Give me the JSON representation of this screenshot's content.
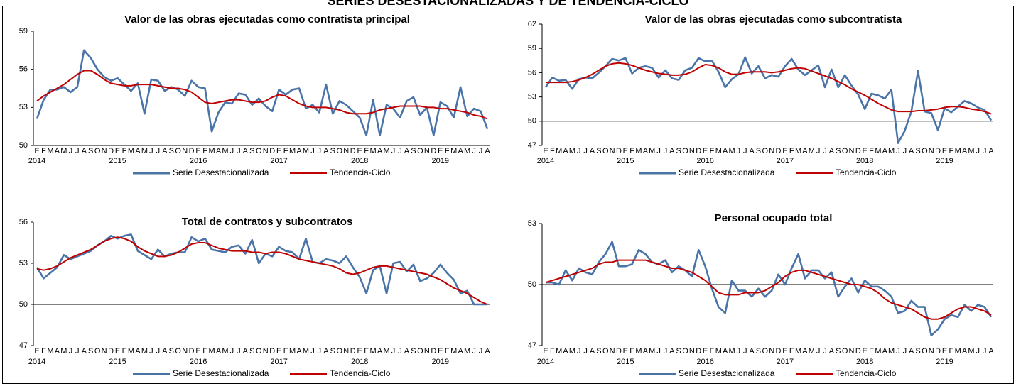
{
  "title": "SERIES DESESTACIONALIZADAS Y DE TENDENCIA-CICLO",
  "chart_data": [
    {
      "type": "line",
      "title": "Valor de las obras ejecutadas como contratista principal",
      "categories": [
        "E",
        "F",
        "M",
        "A",
        "M",
        "J",
        "J",
        "A",
        "S",
        "O",
        "N",
        "D",
        "E",
        "F",
        "M",
        "A",
        "M",
        "J",
        "J",
        "A",
        "S",
        "O",
        "N",
        "D",
        "E",
        "F",
        "M",
        "A",
        "M",
        "J",
        "J",
        "A",
        "S",
        "O",
        "N",
        "D",
        "E",
        "F",
        "M",
        "A",
        "M",
        "J",
        "J",
        "A",
        "S",
        "O",
        "N",
        "D",
        "E",
        "F",
        "M",
        "A",
        "M",
        "J",
        "J",
        "A",
        "S",
        "O",
        "N",
        "D",
        "E",
        "F",
        "M",
        "A",
        "M",
        "J",
        "J",
        "A"
      ],
      "years": [
        "2014",
        "2015",
        "2016",
        "2017",
        "2018",
        "2019"
      ],
      "ylim": [
        50,
        59
      ],
      "yticks": [
        50,
        53,
        56,
        59
      ],
      "hline": 50,
      "series": [
        {
          "name": "Serie Desestacionalizada",
          "color": "#4a74a8",
          "values": [
            52.1,
            53.6,
            54.4,
            54.4,
            54.6,
            54.2,
            54.6,
            57.5,
            56.9,
            56.0,
            55.4,
            55.1,
            55.3,
            54.8,
            54.3,
            54.9,
            52.5,
            55.2,
            55.1,
            54.3,
            54.6,
            54.4,
            53.9,
            55.1,
            54.6,
            54.5,
            51.1,
            52.6,
            53.4,
            53.3,
            54.1,
            54.0,
            53.2,
            53.7,
            53.1,
            52.7,
            54.4,
            54.0,
            54.4,
            54.5,
            52.9,
            53.2,
            52.6,
            54.8,
            52.5,
            53.5,
            53.2,
            52.7,
            52.2,
            50.8,
            53.6,
            50.8,
            53.2,
            52.9,
            52.2,
            53.5,
            53.8,
            52.4,
            53.0,
            50.8,
            53.4,
            53.1,
            52.2,
            54.6,
            52.3,
            52.9,
            52.7,
            51.3
          ]
        },
        {
          "name": "Tendencia-Ciclo",
          "color": "#c00000",
          "values": [
            53.5,
            53.9,
            54.2,
            54.5,
            54.8,
            55.2,
            55.6,
            55.9,
            55.9,
            55.6,
            55.2,
            54.9,
            54.8,
            54.7,
            54.7,
            54.8,
            54.8,
            54.8,
            54.7,
            54.6,
            54.5,
            54.5,
            54.4,
            54.2,
            53.8,
            53.4,
            53.3,
            53.4,
            53.5,
            53.6,
            53.6,
            53.5,
            53.4,
            53.4,
            53.5,
            53.8,
            54.0,
            53.9,
            53.6,
            53.3,
            53.1,
            53.0,
            53.0,
            53.0,
            52.9,
            52.8,
            52.6,
            52.5,
            52.5,
            52.5,
            52.6,
            52.8,
            52.9,
            53.0,
            53.1,
            53.1,
            53.1,
            53.1,
            53.0,
            53.0,
            52.9,
            52.9,
            52.8,
            52.7,
            52.6,
            52.4,
            52.3,
            52.1
          ]
        }
      ]
    },
    {
      "type": "line",
      "title": "Valor de las obras ejecutadas como subcontratista",
      "categories": [
        "E",
        "F",
        "M",
        "A",
        "M",
        "J",
        "J",
        "A",
        "S",
        "O",
        "N",
        "D",
        "E",
        "F",
        "M",
        "A",
        "M",
        "J",
        "J",
        "A",
        "S",
        "O",
        "N",
        "D",
        "E",
        "F",
        "M",
        "A",
        "M",
        "J",
        "J",
        "A",
        "S",
        "O",
        "N",
        "D",
        "E",
        "F",
        "M",
        "A",
        "M",
        "J",
        "J",
        "A",
        "S",
        "O",
        "N",
        "D",
        "E",
        "F",
        "M",
        "A",
        "M",
        "J",
        "J",
        "A",
        "S",
        "O",
        "N",
        "D",
        "E",
        "F",
        "M",
        "A",
        "M",
        "J",
        "J",
        "A"
      ],
      "years": [
        "2014",
        "2015",
        "2016",
        "2017",
        "2018",
        "2019"
      ],
      "ylim": [
        47,
        62
      ],
      "yticks": [
        47,
        50,
        53,
        56,
        59,
        62
      ],
      "hline": 50,
      "series": [
        {
          "name": "Serie Desestacionalizada",
          "color": "#4a74a8",
          "values": [
            54.2,
            55.4,
            55.0,
            55.1,
            54.0,
            55.2,
            55.4,
            55.3,
            56.0,
            56.8,
            57.7,
            57.5,
            57.8,
            55.9,
            56.6,
            56.8,
            56.6,
            55.4,
            56.3,
            55.3,
            55.1,
            56.3,
            56.6,
            57.8,
            57.4,
            57.5,
            56.1,
            54.2,
            55.2,
            55.8,
            57.9,
            55.9,
            56.8,
            55.3,
            55.7,
            55.5,
            56.8,
            57.7,
            56.4,
            55.7,
            56.3,
            56.9,
            54.2,
            56.4,
            54.2,
            55.7,
            54.4,
            53.3,
            51.5,
            53.4,
            53.2,
            52.8,
            53.9,
            47.3,
            48.8,
            51.2,
            56.2,
            51.2,
            51.0,
            48.9,
            51.6,
            51.1,
            51.8,
            52.5,
            52.2,
            51.7,
            51.4,
            50.1
          ]
        },
        {
          "name": "Tendencia-Ciclo",
          "color": "#c00000",
          "values": [
            54.8,
            54.8,
            54.8,
            54.8,
            54.9,
            55.1,
            55.4,
            55.8,
            56.3,
            56.8,
            57.1,
            57.2,
            57.1,
            56.9,
            56.6,
            56.3,
            56.1,
            55.9,
            55.8,
            55.7,
            55.7,
            55.8,
            56.1,
            56.6,
            57.0,
            56.9,
            56.6,
            56.1,
            55.8,
            55.8,
            56.0,
            56.1,
            56.1,
            56.1,
            56.0,
            56.1,
            56.3,
            56.5,
            56.6,
            56.5,
            56.2,
            55.9,
            55.6,
            55.3,
            54.9,
            54.5,
            54.0,
            53.6,
            53.2,
            52.7,
            52.2,
            51.8,
            51.4,
            51.2,
            51.2,
            51.2,
            51.3,
            51.3,
            51.4,
            51.5,
            51.7,
            51.8,
            51.8,
            51.7,
            51.5,
            51.4,
            51.2,
            50.9
          ]
        }
      ]
    },
    {
      "type": "line",
      "title": "Total de contratos y subcontratos",
      "categories": [
        "E",
        "F",
        "M",
        "A",
        "M",
        "J",
        "J",
        "A",
        "S",
        "O",
        "N",
        "D",
        "E",
        "F",
        "M",
        "A",
        "M",
        "J",
        "J",
        "A",
        "S",
        "O",
        "N",
        "D",
        "E",
        "F",
        "M",
        "A",
        "M",
        "J",
        "J",
        "A",
        "S",
        "O",
        "N",
        "D",
        "E",
        "F",
        "M",
        "A",
        "M",
        "J",
        "J",
        "A",
        "S",
        "O",
        "N",
        "D",
        "E",
        "F",
        "M",
        "A",
        "M",
        "J",
        "J",
        "A",
        "S",
        "O",
        "N",
        "D",
        "E",
        "F",
        "M",
        "A",
        "M",
        "J",
        "J",
        "A"
      ],
      "years": [
        "2014",
        "2015",
        "2016",
        "2017",
        "2018",
        "2019"
      ],
      "ylim": [
        47,
        56
      ],
      "yticks": [
        47,
        50,
        53,
        56
      ],
      "hline": 50,
      "series": [
        {
          "name": "Serie Desestacionalizada",
          "color": "#4a74a8",
          "values": [
            52.7,
            51.9,
            52.3,
            52.7,
            53.6,
            53.3,
            53.5,
            53.7,
            53.9,
            54.3,
            54.6,
            55.0,
            54.8,
            55.0,
            55.1,
            53.9,
            53.6,
            53.3,
            54.0,
            53.5,
            53.7,
            53.8,
            53.8,
            54.9,
            54.6,
            54.8,
            54.0,
            53.9,
            53.8,
            54.2,
            54.3,
            53.7,
            54.7,
            53.0,
            53.7,
            53.5,
            54.2,
            53.9,
            53.8,
            53.3,
            54.8,
            53.1,
            53.0,
            53.3,
            53.2,
            53.0,
            53.5,
            52.7,
            52.0,
            50.8,
            52.5,
            52.8,
            50.8,
            53.0,
            53.1,
            52.4,
            52.9,
            51.7,
            51.9,
            52.3,
            52.9,
            52.3,
            51.8,
            50.8,
            51.0,
            50.0,
            50.0,
            50.0
          ]
        },
        {
          "name": "Tendencia-Ciclo",
          "color": "#c00000",
          "values": [
            52.6,
            52.5,
            52.6,
            52.8,
            53.1,
            53.4,
            53.6,
            53.8,
            54.0,
            54.3,
            54.6,
            54.8,
            54.9,
            54.8,
            54.6,
            54.2,
            53.9,
            53.7,
            53.5,
            53.5,
            53.6,
            53.8,
            54.1,
            54.4,
            54.5,
            54.5,
            54.3,
            54.1,
            54.0,
            53.9,
            53.9,
            53.9,
            53.8,
            53.8,
            53.7,
            53.8,
            53.8,
            53.7,
            53.5,
            53.3,
            53.2,
            53.1,
            53.0,
            52.9,
            52.8,
            52.6,
            52.3,
            52.2,
            52.3,
            52.5,
            52.7,
            52.8,
            52.8,
            52.7,
            52.6,
            52.5,
            52.4,
            52.3,
            52.2,
            52.0,
            51.8,
            51.5,
            51.2,
            51.0,
            50.8,
            50.5,
            50.2,
            50.0
          ]
        }
      ]
    },
    {
      "type": "line",
      "title": "Personal ocupado total",
      "categories": [
        "E",
        "F",
        "M",
        "A",
        "M",
        "J",
        "J",
        "A",
        "S",
        "O",
        "N",
        "D",
        "E",
        "F",
        "M",
        "A",
        "M",
        "J",
        "J",
        "A",
        "S",
        "O",
        "N",
        "D",
        "E",
        "F",
        "M",
        "A",
        "M",
        "J",
        "J",
        "A",
        "S",
        "O",
        "N",
        "D",
        "E",
        "F",
        "M",
        "A",
        "M",
        "J",
        "J",
        "A",
        "S",
        "O",
        "N",
        "D",
        "E",
        "F",
        "M",
        "A",
        "M",
        "J",
        "J",
        "A",
        "S",
        "O",
        "N",
        "D",
        "E",
        "F",
        "M",
        "A",
        "M",
        "J",
        "J",
        "A"
      ],
      "years": [
        "2014",
        "2015",
        "2016",
        "2017",
        "2018",
        "2019"
      ],
      "ylim": [
        47,
        53
      ],
      "yticks": [
        47,
        50,
        53
      ],
      "hline": 50,
      "series": [
        {
          "name": "Serie Desestacionalizada",
          "color": "#4a74a8",
          "values": [
            50.1,
            50.1,
            50.0,
            50.7,
            50.2,
            50.8,
            50.6,
            50.5,
            51.1,
            51.5,
            52.1,
            50.9,
            50.9,
            51.0,
            51.7,
            51.5,
            51.1,
            51.0,
            51.2,
            50.6,
            50.9,
            50.7,
            50.4,
            51.7,
            50.9,
            49.8,
            48.9,
            48.6,
            50.2,
            49.7,
            49.7,
            49.4,
            49.8,
            49.4,
            49.7,
            50.5,
            50.0,
            50.8,
            51.5,
            50.3,
            50.7,
            50.7,
            50.3,
            50.6,
            49.4,
            49.9,
            50.3,
            49.6,
            50.2,
            49.9,
            49.9,
            49.7,
            49.4,
            48.6,
            48.7,
            49.2,
            48.9,
            48.9,
            47.5,
            47.8,
            48.3,
            48.5,
            48.4,
            49.0,
            48.7,
            49.0,
            48.9,
            48.4
          ]
        },
        {
          "name": "Tendencia-Ciclo",
          "color": "#c00000",
          "values": [
            50.1,
            50.2,
            50.3,
            50.4,
            50.5,
            50.6,
            50.7,
            50.8,
            51.0,
            51.1,
            51.1,
            51.2,
            51.2,
            51.2,
            51.2,
            51.2,
            51.1,
            51.0,
            50.9,
            50.8,
            50.8,
            50.7,
            50.6,
            50.4,
            50.2,
            49.9,
            49.6,
            49.5,
            49.5,
            49.5,
            49.6,
            49.6,
            49.6,
            49.7,
            49.9,
            50.1,
            50.4,
            50.6,
            50.7,
            50.7,
            50.6,
            50.5,
            50.4,
            50.3,
            50.2,
            50.1,
            50.0,
            50.0,
            49.9,
            49.8,
            49.6,
            49.3,
            49.1,
            49.0,
            48.9,
            48.8,
            48.6,
            48.4,
            48.3,
            48.3,
            48.4,
            48.6,
            48.8,
            48.9,
            48.9,
            48.8,
            48.7,
            48.5
          ]
        }
      ]
    }
  ]
}
